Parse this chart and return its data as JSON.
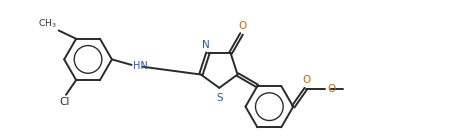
{
  "bg_color": "#ffffff",
  "line_color": "#2a2a2a",
  "line_width": 1.4,
  "text_color": "#2a2a2a",
  "label_N": "#2255bb",
  "label_O": "#cc6600",
  "label_S": "#2255bb",
  "label_Cl": "#2a2a2a",
  "figsize": [
    4.77,
    1.39
  ],
  "dpi": 100,
  "xlim": [
    0,
    10.0
  ],
  "ylim": [
    0.0,
    3.0
  ]
}
